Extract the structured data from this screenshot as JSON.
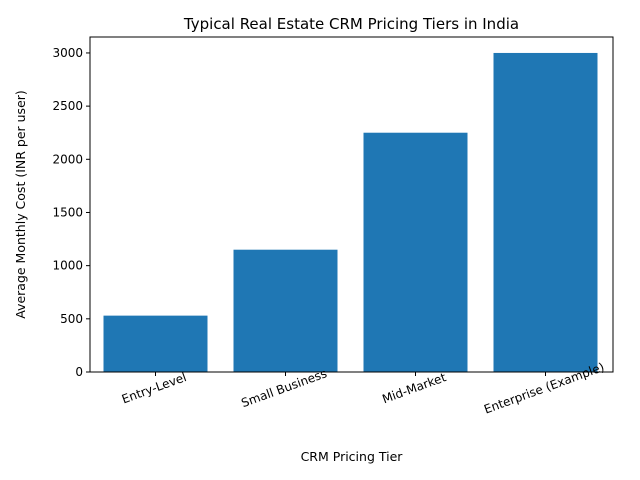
{
  "chart_data": {
    "type": "bar",
    "title": "Typical Real Estate CRM Pricing Tiers in India",
    "xlabel": "CRM Pricing Tier",
    "ylabel": "Average Monthly Cost (INR per user)",
    "categories": [
      "Entry-Level",
      "Small Business",
      "Mid-Market",
      "Enterprise (Example)"
    ],
    "values": [
      530,
      1150,
      2250,
      3000
    ],
    "ylim": [
      0,
      3150
    ],
    "yticks": [
      0,
      500,
      1000,
      1500,
      2000,
      2500,
      3000
    ],
    "bar_color": "#1f77b4",
    "grid": false,
    "legend": "none"
  }
}
